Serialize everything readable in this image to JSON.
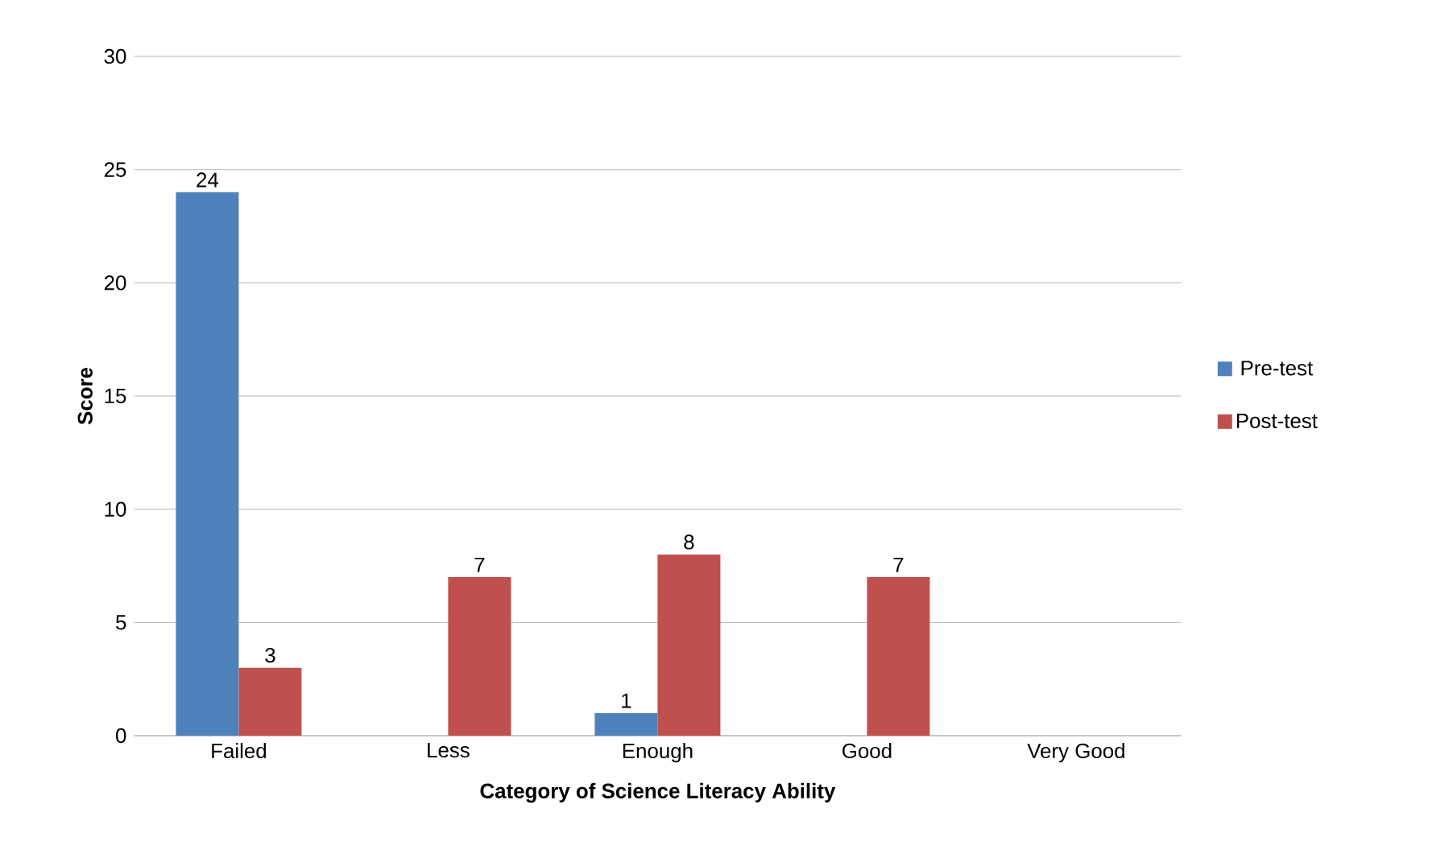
{
  "chart_data": {
    "type": "bar",
    "xlabel": "Category of Science Literacy Ability",
    "ylabel": "Score",
    "categories": [
      "Failed",
      "Less",
      "Enough",
      "Good",
      "Very Good"
    ],
    "series": [
      {
        "name": "Pre-test",
        "color": "#4f81bd",
        "values": [
          24,
          0,
          1,
          0,
          0
        ],
        "value_labels": [
          "24",
          null,
          "1",
          null,
          null
        ]
      },
      {
        "name": "Post-test",
        "color": "#c0504d",
        "values": [
          3,
          7,
          8,
          7,
          0
        ],
        "value_labels": [
          "3",
          "7",
          "8",
          "7",
          null
        ]
      }
    ],
    "ylim": [
      0,
      30
    ],
    "yticks": [
      0,
      5,
      10,
      15,
      20,
      25,
      30
    ],
    "grid": "y",
    "legend": "right"
  }
}
